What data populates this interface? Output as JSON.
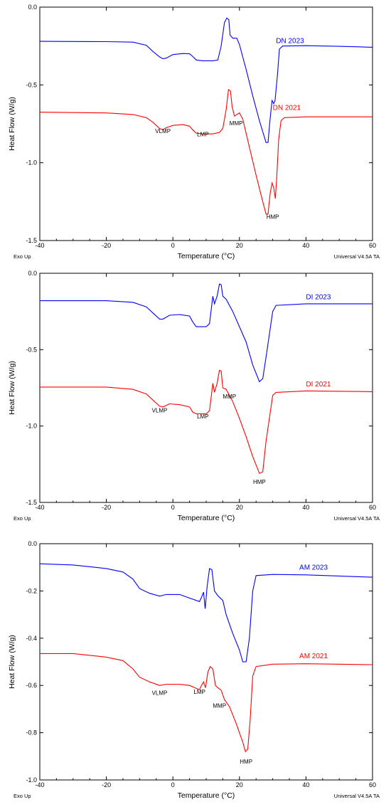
{
  "chart_data": [
    {
      "type": "line",
      "xlabel": "Temperature (°C)",
      "ylabel": "Heat Flow (W/g)",
      "xlim": [
        -40,
        60
      ],
      "ylim": [
        -1.5,
        0.0
      ],
      "xticks": [
        -40,
        -20,
        0,
        20,
        40,
        60
      ],
      "yticks": [
        "0.0",
        "-0.5",
        "-1.0",
        "-1.5"
      ],
      "footer_left": "Exo Up",
      "footer_right": "Universal V4.5A TA",
      "series": [
        {
          "name": "DN 2023",
          "color": "#0000ff",
          "label_at": [
            31,
            -0.23
          ],
          "points": [
            [
              -40,
              -0.22
            ],
            [
              -20,
              -0.222
            ],
            [
              -12,
              -0.225
            ],
            [
              -8,
              -0.245
            ],
            [
              -6,
              -0.285
            ],
            [
              -4,
              -0.32
            ],
            [
              -3,
              -0.332
            ],
            [
              -2,
              -0.328
            ],
            [
              0,
              -0.305
            ],
            [
              3,
              -0.298
            ],
            [
              5,
              -0.3
            ],
            [
              6,
              -0.318
            ],
            [
              7,
              -0.34
            ],
            [
              9,
              -0.345
            ],
            [
              12,
              -0.345
            ],
            [
              13.5,
              -0.34
            ],
            [
              14.5,
              -0.25
            ],
            [
              15.5,
              -0.1
            ],
            [
              16.2,
              -0.07
            ],
            [
              16.8,
              -0.08
            ],
            [
              17.2,
              -0.18
            ],
            [
              18,
              -0.2
            ],
            [
              19.2,
              -0.2
            ],
            [
              20,
              -0.24
            ],
            [
              22,
              -0.4
            ],
            [
              24,
              -0.57
            ],
            [
              26,
              -0.73
            ],
            [
              28,
              -0.87
            ],
            [
              28.6,
              -0.87
            ],
            [
              29.2,
              -0.72
            ],
            [
              29.8,
              -0.6
            ],
            [
              30.3,
              -0.62
            ],
            [
              30.7,
              -0.6
            ],
            [
              31.5,
              -0.42
            ],
            [
              32,
              -0.27
            ],
            [
              33,
              -0.25
            ],
            [
              40,
              -0.248
            ],
            [
              50,
              -0.252
            ],
            [
              60,
              -0.258
            ]
          ]
        },
        {
          "name": "DN 2021",
          "color": "#ff0000",
          "label_at": [
            30,
            -0.66
          ],
          "points": [
            [
              -40,
              -0.675
            ],
            [
              -20,
              -0.68
            ],
            [
              -12,
              -0.69
            ],
            [
              -8,
              -0.71
            ],
            [
              -6,
              -0.74
            ],
            [
              -4,
              -0.78
            ],
            [
              -3,
              -0.788
            ],
            [
              -2,
              -0.775
            ],
            [
              0,
              -0.76
            ],
            [
              3,
              -0.755
            ],
            [
              5,
              -0.765
            ],
            [
              6,
              -0.79
            ],
            [
              7,
              -0.81
            ],
            [
              9,
              -0.815
            ],
            [
              12,
              -0.815
            ],
            [
              14,
              -0.805
            ],
            [
              15,
              -0.78
            ],
            [
              16,
              -0.66
            ],
            [
              16.7,
              -0.53
            ],
            [
              17.3,
              -0.54
            ],
            [
              17.8,
              -0.64
            ],
            [
              18.5,
              -0.7
            ],
            [
              20,
              -0.68
            ],
            [
              21,
              -0.72
            ],
            [
              23,
              -0.9
            ],
            [
              25,
              -1.08
            ],
            [
              27,
              -1.25
            ],
            [
              28,
              -1.33
            ],
            [
              28.6,
              -1.33
            ],
            [
              29.2,
              -1.2
            ],
            [
              29.8,
              -1.13
            ],
            [
              30.3,
              -1.16
            ],
            [
              30.8,
              -1.23
            ],
            [
              31.2,
              -1.1
            ],
            [
              31.8,
              -0.85
            ],
            [
              32.5,
              -0.73
            ],
            [
              33.5,
              -0.71
            ],
            [
              40,
              -0.705
            ],
            [
              50,
              -0.705
            ],
            [
              60,
              -0.705
            ]
          ]
        }
      ],
      "annotations": [
        {
          "text": "VLMP",
          "at": [
            -3,
            -0.81
          ]
        },
        {
          "text": "LMP",
          "at": [
            9,
            -0.83
          ]
        },
        {
          "text": "MMP",
          "at": [
            19,
            -0.76
          ]
        },
        {
          "text": "HMP",
          "at": [
            30,
            -1.36
          ]
        }
      ]
    },
    {
      "type": "line",
      "xlabel": "Temperature (°C)",
      "ylabel": "Heat Flow (W/g)",
      "xlim": [
        -40,
        60
      ],
      "ylim": [
        -1.5,
        0.0
      ],
      "xticks": [
        -40,
        -20,
        0,
        20,
        40,
        60
      ],
      "yticks": [
        "0.0",
        "-0.5",
        "-1.0",
        "-1.5"
      ],
      "footer_left": "Exo Up",
      "footer_right": "Universal V4.5A TA",
      "series": [
        {
          "name": "DI 2023",
          "color": "#0000ff",
          "label_at": [
            40,
            -0.17
          ],
          "points": [
            [
              -40,
              -0.18
            ],
            [
              -20,
              -0.18
            ],
            [
              -12,
              -0.19
            ],
            [
              -8,
              -0.22
            ],
            [
              -6,
              -0.26
            ],
            [
              -4,
              -0.3
            ],
            [
              -3,
              -0.3
            ],
            [
              -1,
              -0.275
            ],
            [
              2,
              -0.27
            ],
            [
              5,
              -0.28
            ],
            [
              6,
              -0.32
            ],
            [
              7,
              -0.35
            ],
            [
              10,
              -0.35
            ],
            [
              11,
              -0.33
            ],
            [
              12,
              -0.15
            ],
            [
              12.5,
              -0.2
            ],
            [
              13.3,
              -0.15
            ],
            [
              14,
              -0.07
            ],
            [
              14.5,
              -0.075
            ],
            [
              15,
              -0.15
            ],
            [
              16,
              -0.17
            ],
            [
              18,
              -0.25
            ],
            [
              20,
              -0.35
            ],
            [
              22,
              -0.45
            ],
            [
              24,
              -0.6
            ],
            [
              26,
              -0.71
            ],
            [
              27,
              -0.69
            ],
            [
              28,
              -0.55
            ],
            [
              29,
              -0.4
            ],
            [
              30,
              -0.25
            ],
            [
              31,
              -0.21
            ],
            [
              40,
              -0.2
            ],
            [
              60,
              -0.2
            ]
          ]
        },
        {
          "name": "DI 2021",
          "color": "#ff0000",
          "label_at": [
            40,
            -0.74
          ],
          "points": [
            [
              -40,
              -0.745
            ],
            [
              -20,
              -0.745
            ],
            [
              -12,
              -0.76
            ],
            [
              -8,
              -0.79
            ],
            [
              -6,
              -0.83
            ],
            [
              -4,
              -0.87
            ],
            [
              -3,
              -0.875
            ],
            [
              -1,
              -0.855
            ],
            [
              2,
              -0.86
            ],
            [
              5,
              -0.875
            ],
            [
              6,
              -0.91
            ],
            [
              7,
              -0.92
            ],
            [
              10,
              -0.92
            ],
            [
              11,
              -0.9
            ],
            [
              12,
              -0.72
            ],
            [
              12.5,
              -0.78
            ],
            [
              13.3,
              -0.72
            ],
            [
              14,
              -0.635
            ],
            [
              14.5,
              -0.64
            ],
            [
              15,
              -0.75
            ],
            [
              16,
              -0.76
            ],
            [
              18,
              -0.84
            ],
            [
              20,
              -0.95
            ],
            [
              22,
              -1.07
            ],
            [
              24,
              -1.2
            ],
            [
              26,
              -1.31
            ],
            [
              27,
              -1.3
            ],
            [
              28,
              -1.1
            ],
            [
              29,
              -0.95
            ],
            [
              30,
              -0.8
            ],
            [
              31,
              -0.78
            ],
            [
              40,
              -0.77
            ],
            [
              60,
              -0.775
            ]
          ]
        }
      ],
      "annotations": [
        {
          "text": "VLMP",
          "at": [
            -4,
            -0.91
          ]
        },
        {
          "text": "LMP",
          "at": [
            9,
            -0.95
          ]
        },
        {
          "text": "MMP",
          "at": [
            17,
            -0.82
          ]
        },
        {
          "text": "HMP",
          "at": [
            26,
            -1.38
          ]
        }
      ]
    },
    {
      "type": "line",
      "xlabel": "Temperature (°C)",
      "ylabel": "Heat Flow (W/g)",
      "xlim": [
        -40,
        60
      ],
      "ylim": [
        -1.0,
        0.0
      ],
      "xticks": [
        -40,
        -20,
        0,
        20,
        40,
        60
      ],
      "yticks": [
        "0.0",
        "-0.2",
        "-0.4",
        "-0.6",
        "-0.8",
        "-1.0"
      ],
      "footer_left": "Exo Up",
      "footer_right": "Universal V4.5A TA",
      "series": [
        {
          "name": "AM 2023",
          "color": "#0000ff",
          "label_at": [
            38,
            -0.11
          ],
          "points": [
            [
              -40,
              -0.085
            ],
            [
              -30,
              -0.09
            ],
            [
              -20,
              -0.105
            ],
            [
              -15,
              -0.12
            ],
            [
              -12,
              -0.15
            ],
            [
              -10,
              -0.19
            ],
            [
              -7,
              -0.21
            ],
            [
              -4,
              -0.222
            ],
            [
              -2,
              -0.215
            ],
            [
              2,
              -0.215
            ],
            [
              5,
              -0.23
            ],
            [
              8,
              -0.245
            ],
            [
              8.5,
              -0.23
            ],
            [
              9.2,
              -0.205
            ],
            [
              9.7,
              -0.275
            ],
            [
              10.3,
              -0.18
            ],
            [
              11,
              -0.105
            ],
            [
              11.7,
              -0.11
            ],
            [
              12.5,
              -0.2
            ],
            [
              13.5,
              -0.22
            ],
            [
              15,
              -0.24
            ],
            [
              16,
              -0.3
            ],
            [
              18,
              -0.38
            ],
            [
              20,
              -0.45
            ],
            [
              21,
              -0.5
            ],
            [
              22,
              -0.5
            ],
            [
              23,
              -0.4
            ],
            [
              24,
              -0.2
            ],
            [
              25,
              -0.135
            ],
            [
              30,
              -0.13
            ],
            [
              40,
              -0.132
            ],
            [
              60,
              -0.142
            ]
          ]
        },
        {
          "name": "AM 2021",
          "color": "#ff0000",
          "label_at": [
            38,
            -0.485
          ],
          "points": [
            [
              -40,
              -0.465
            ],
            [
              -30,
              -0.465
            ],
            [
              -20,
              -0.48
            ],
            [
              -15,
              -0.495
            ],
            [
              -12,
              -0.53
            ],
            [
              -10,
              -0.565
            ],
            [
              -7,
              -0.585
            ],
            [
              -4,
              -0.6
            ],
            [
              -2,
              -0.595
            ],
            [
              2,
              -0.595
            ],
            [
              5,
              -0.6
            ],
            [
              8,
              -0.618
            ],
            [
              8.6,
              -0.6
            ],
            [
              9.2,
              -0.585
            ],
            [
              9.8,
              -0.61
            ],
            [
              10.5,
              -0.545
            ],
            [
              11.2,
              -0.52
            ],
            [
              12,
              -0.53
            ],
            [
              12.8,
              -0.6
            ],
            [
              13.5,
              -0.61
            ],
            [
              14.5,
              -0.62
            ],
            [
              15.5,
              -0.66
            ],
            [
              17,
              -0.69
            ],
            [
              19,
              -0.76
            ],
            [
              21,
              -0.84
            ],
            [
              21.8,
              -0.88
            ],
            [
              22.5,
              -0.87
            ],
            [
              23.2,
              -0.75
            ],
            [
              24,
              -0.56
            ],
            [
              25,
              -0.52
            ],
            [
              30,
              -0.51
            ],
            [
              40,
              -0.508
            ],
            [
              60,
              -0.512
            ]
          ]
        }
      ],
      "annotations": [
        {
          "text": "VLMP",
          "at": [
            -4,
            -0.64
          ]
        },
        {
          "text": "LMP",
          "at": [
            8,
            -0.635
          ]
        },
        {
          "text": "MMP",
          "at": [
            14,
            -0.695
          ]
        },
        {
          "text": "HMP",
          "at": [
            22,
            -0.93
          ]
        }
      ]
    }
  ]
}
